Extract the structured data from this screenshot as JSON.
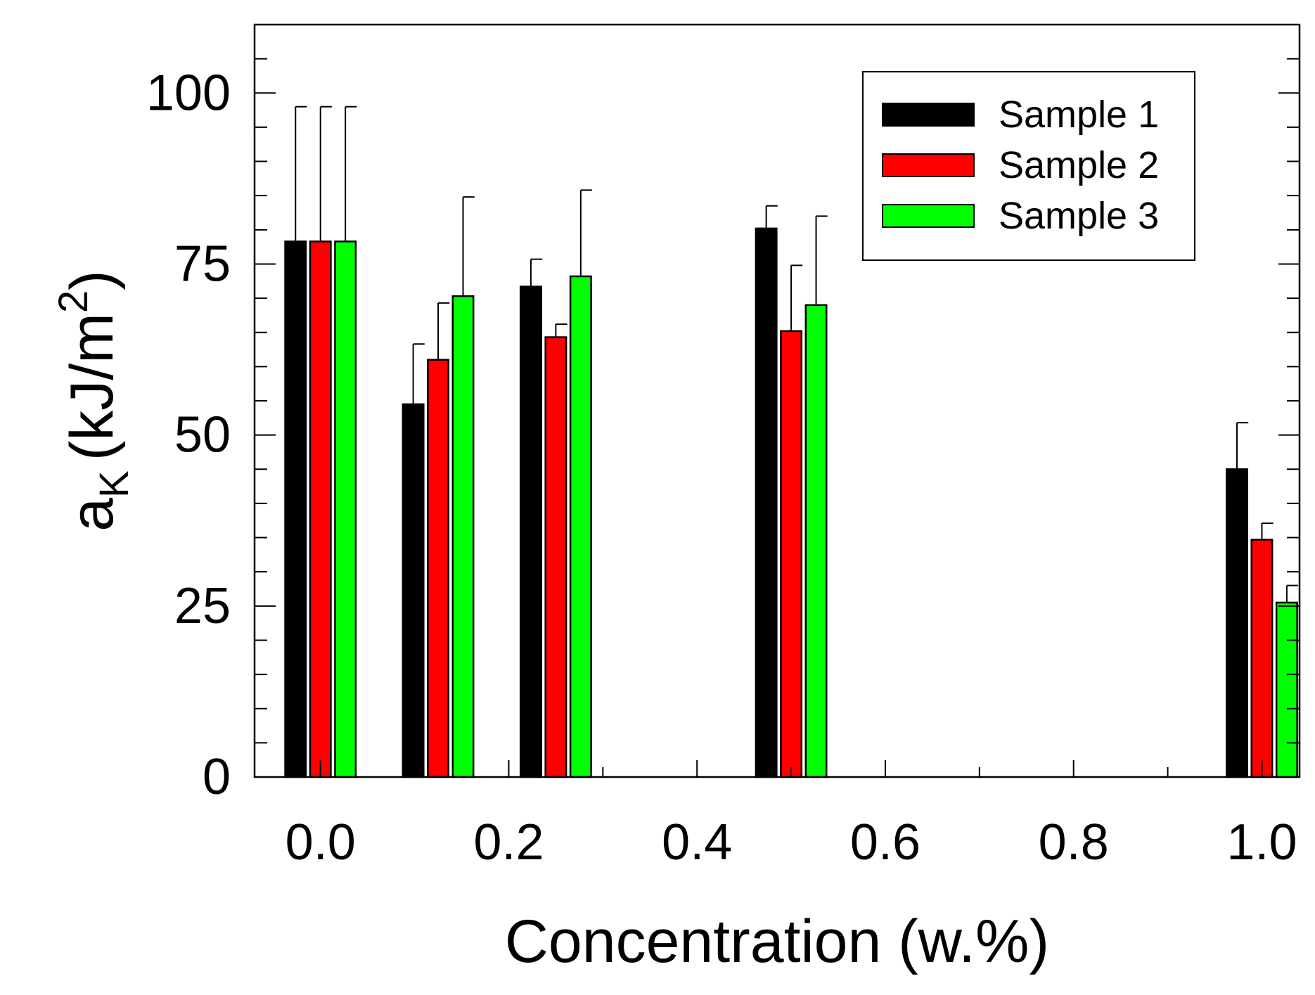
{
  "chart_data": {
    "type": "bar",
    "title": "",
    "xlabel": "Concentration (w.%)",
    "ylabel_main": "a",
    "ylabel_sub": "K",
    "ylabel_units": "(kJ/m",
    "ylabel_sup": "2",
    "ylabel_close": ")",
    "xlim": [
      -0.07,
      1.04
    ],
    "ylim": [
      0,
      110
    ],
    "x_ticks": [
      0.0,
      0.2,
      0.4,
      0.6,
      0.8,
      1.0
    ],
    "x_tick_labels": [
      "0.0",
      "0.2",
      "0.4",
      "0.6",
      "0.8",
      "1.0"
    ],
    "y_ticks": [
      0,
      25,
      50,
      75,
      100
    ],
    "y_tick_labels": [
      "0",
      "25",
      "50",
      "75",
      "100"
    ],
    "bar_width": 0.022,
    "groups": [
      0.0,
      0.125,
      0.25,
      0.5,
      1.0
    ],
    "series": [
      {
        "name": "Sample 1",
        "color": "#000000",
        "values": [
          78.3,
          54.5,
          71.7,
          80.2,
          45.0
        ],
        "errors": [
          19.7,
          8.8,
          4.0,
          3.3,
          6.8
        ]
      },
      {
        "name": "Sample 2",
        "color": "#ff0000",
        "values": [
          78.3,
          61.0,
          64.3,
          65.2,
          34.7
        ],
        "errors": [
          19.7,
          8.3,
          1.9,
          9.6,
          2.4
        ]
      },
      {
        "name": "Sample 3",
        "color": "#00ff00",
        "values": [
          78.3,
          70.3,
          73.2,
          69.0,
          25.5
        ],
        "errors": [
          19.7,
          14.5,
          12.6,
          13.0,
          2.5
        ]
      }
    ],
    "legend_position": "top-right",
    "grid": false
  }
}
